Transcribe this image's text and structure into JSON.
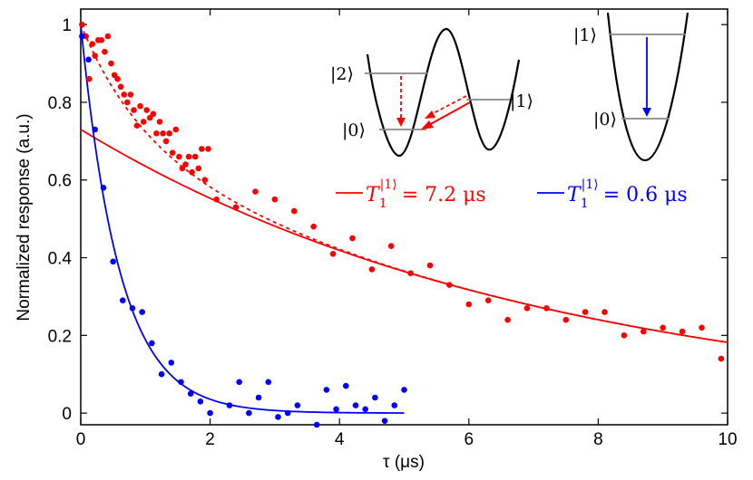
{
  "chart_data": {
    "type": "scatter",
    "title": "",
    "xlabel": "τ (μs)",
    "ylabel": "Normalized response (a.u.)",
    "xlim": [
      0,
      10
    ],
    "ylim": [
      -0.03,
      1.04
    ],
    "xticks": [
      "0",
      "2",
      "4",
      "6",
      "8",
      "10"
    ],
    "yticks": [
      "0",
      "0.2",
      "0.4",
      "0.6",
      "0.8",
      "1"
    ],
    "series": [
      {
        "name": "red data",
        "color": "#ff0000",
        "kind": "points",
        "x": [
          0.02,
          0.08,
          0.13,
          0.18,
          0.22,
          0.27,
          0.32,
          0.37,
          0.42,
          0.47,
          0.52,
          0.57,
          0.62,
          0.67,
          0.72,
          0.77,
          0.82,
          0.87,
          0.92,
          0.97,
          1.02,
          1.07,
          1.12,
          1.17,
          1.22,
          1.27,
          1.32,
          1.37,
          1.42,
          1.47,
          1.52,
          1.57,
          1.62,
          1.67,
          1.72,
          1.77,
          1.82,
          1.87,
          1.92,
          1.97,
          2.1,
          2.4,
          2.7,
          3.0,
          3.3,
          3.6,
          3.9,
          4.2,
          4.5,
          4.8,
          5.1,
          5.4,
          5.7,
          6.0,
          6.3,
          6.6,
          6.9,
          7.2,
          7.5,
          7.8,
          8.1,
          8.4,
          8.7,
          9.0,
          9.3,
          9.6,
          9.9
        ],
        "y": [
          1.0,
          0.97,
          0.86,
          0.95,
          0.92,
          0.96,
          0.96,
          0.93,
          0.97,
          0.9,
          0.87,
          0.86,
          0.84,
          0.82,
          0.8,
          0.82,
          0.78,
          0.74,
          0.79,
          0.75,
          0.78,
          0.76,
          0.77,
          0.72,
          0.75,
          0.72,
          0.7,
          0.72,
          0.67,
          0.73,
          0.66,
          0.63,
          0.64,
          0.66,
          0.62,
          0.66,
          0.63,
          0.68,
          0.6,
          0.68,
          0.55,
          0.53,
          0.57,
          0.55,
          0.52,
          0.48,
          0.41,
          0.45,
          0.37,
          0.43,
          0.36,
          0.38,
          0.33,
          0.28,
          0.29,
          0.24,
          0.27,
          0.27,
          0.24,
          0.26,
          0.26,
          0.2,
          0.21,
          0.22,
          0.21,
          0.22,
          0.14
        ]
      },
      {
        "name": "blue data",
        "color": "#0000ff",
        "kind": "points",
        "x": [
          0.02,
          0.12,
          0.22,
          0.35,
          0.5,
          0.65,
          0.8,
          0.95,
          1.1,
          1.25,
          1.4,
          1.55,
          1.7,
          1.85,
          2.0,
          2.15,
          2.3,
          2.45,
          2.6,
          2.75,
          2.9,
          3.05,
          3.2,
          3.35,
          3.5,
          3.65,
          3.8,
          3.95,
          4.1,
          4.25,
          4.4,
          4.55,
          4.7,
          4.85,
          5.0
        ],
        "y": [
          0.97,
          0.91,
          0.73,
          0.58,
          0.39,
          0.29,
          0.27,
          0.26,
          0.18,
          0.1,
          0.13,
          0.08,
          0.05,
          0.03,
          0.0,
          -0.04,
          0.02,
          0.08,
          0.0,
          0.04,
          0.08,
          -0.01,
          0.0,
          0.02,
          -0.04,
          -0.03,
          0.06,
          0.01,
          0.07,
          0.02,
          0.01,
          0.04,
          -0.02,
          0.02,
          0.06
        ]
      },
      {
        "name": "red single-exponential fit",
        "color": "#ff0000",
        "kind": "exp",
        "A": 0.73,
        "tau": 7.2,
        "c": 0.0,
        "xrange": [
          0,
          10
        ],
        "dash": false
      },
      {
        "name": "red two-exponential fit",
        "color": "#ff0000",
        "kind": "exp2",
        "A": 0.73,
        "tau": 7.2,
        "B": 0.27,
        "tau2": 0.9,
        "xrange": [
          0,
          10
        ],
        "dash": true
      },
      {
        "name": "blue fit",
        "color": "#0000ff",
        "kind": "exp",
        "A": 1.0,
        "tau": 0.6,
        "c": 0.0,
        "xrange": [
          0,
          5
        ],
        "dash": false
      }
    ],
    "legend": [
      {
        "sym": "T",
        "sub": "1",
        "sup": "|1⟩",
        "value": "= 7.2 μs",
        "color": "#ff0000"
      },
      {
        "sym": "T",
        "sub": "1",
        "sup": "|1⟩",
        "value": "= 0.6 μs",
        "color": "#0000ff"
      }
    ],
    "insets": {
      "double_well": {
        "levels": [
          "|2⟩",
          "|0⟩",
          "|1⟩"
        ]
      },
      "single_well": {
        "levels": [
          "|1⟩",
          "|0⟩"
        ]
      }
    }
  }
}
